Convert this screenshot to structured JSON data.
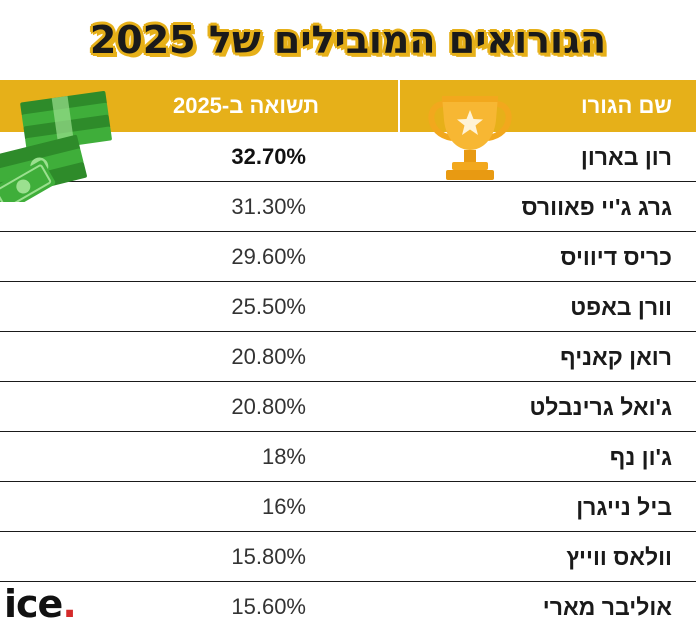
{
  "title": "הגורואים המובילים של 2025",
  "table": {
    "headers": {
      "name": "שם הגורו",
      "return": "תשואה ב-2025"
    },
    "rows": [
      {
        "name": "רון בארון",
        "return": "32.70%"
      },
      {
        "name": "גרג ג'יי פאוורס",
        "return": "31.30%"
      },
      {
        "name": "כריס דיוויס",
        "return": "29.60%"
      },
      {
        "name": "וורן באפט",
        "return": "25.50%"
      },
      {
        "name": "רואן קאניף",
        "return": "20.80%"
      },
      {
        "name": "ג'ואל גרינבלט",
        "return": "20.80%"
      },
      {
        "name": "ג'ון נף",
        "return": "18%"
      },
      {
        "name": "ביל נייגרן",
        "return": "16%"
      },
      {
        "name": "וולאס ווייץ",
        "return": "15.80%"
      },
      {
        "name": "אוליבר מארי",
        "return": "15.60%"
      }
    ]
  },
  "chart_data": {
    "type": "table",
    "title": "הגורואים המובילים של 2025",
    "columns": [
      "שם הגורו",
      "תשואה ב-2025"
    ],
    "categories": [
      "רון בארון",
      "גרג ג'יי פאוורס",
      "כריס דיוויס",
      "וורן באפט",
      "רואן קאניף",
      "ג'ואל גרינבלט",
      "ג'ון נף",
      "ביל נייגרן",
      "וולאס ווייץ",
      "אוליבר מארי"
    ],
    "values": [
      32.7,
      31.3,
      29.6,
      25.5,
      20.8,
      20.8,
      18,
      16,
      15.8,
      15.6
    ]
  },
  "logo": {
    "text": "ice",
    "dot": "."
  },
  "colors": {
    "accent": "#e6b019",
    "money_green": "#3fae3a",
    "trophy_gold": "#f2a81d",
    "logo_dot": "#d42a2a"
  },
  "icons": {
    "trophy": "trophy-icon",
    "money": "money-stack-icon"
  }
}
